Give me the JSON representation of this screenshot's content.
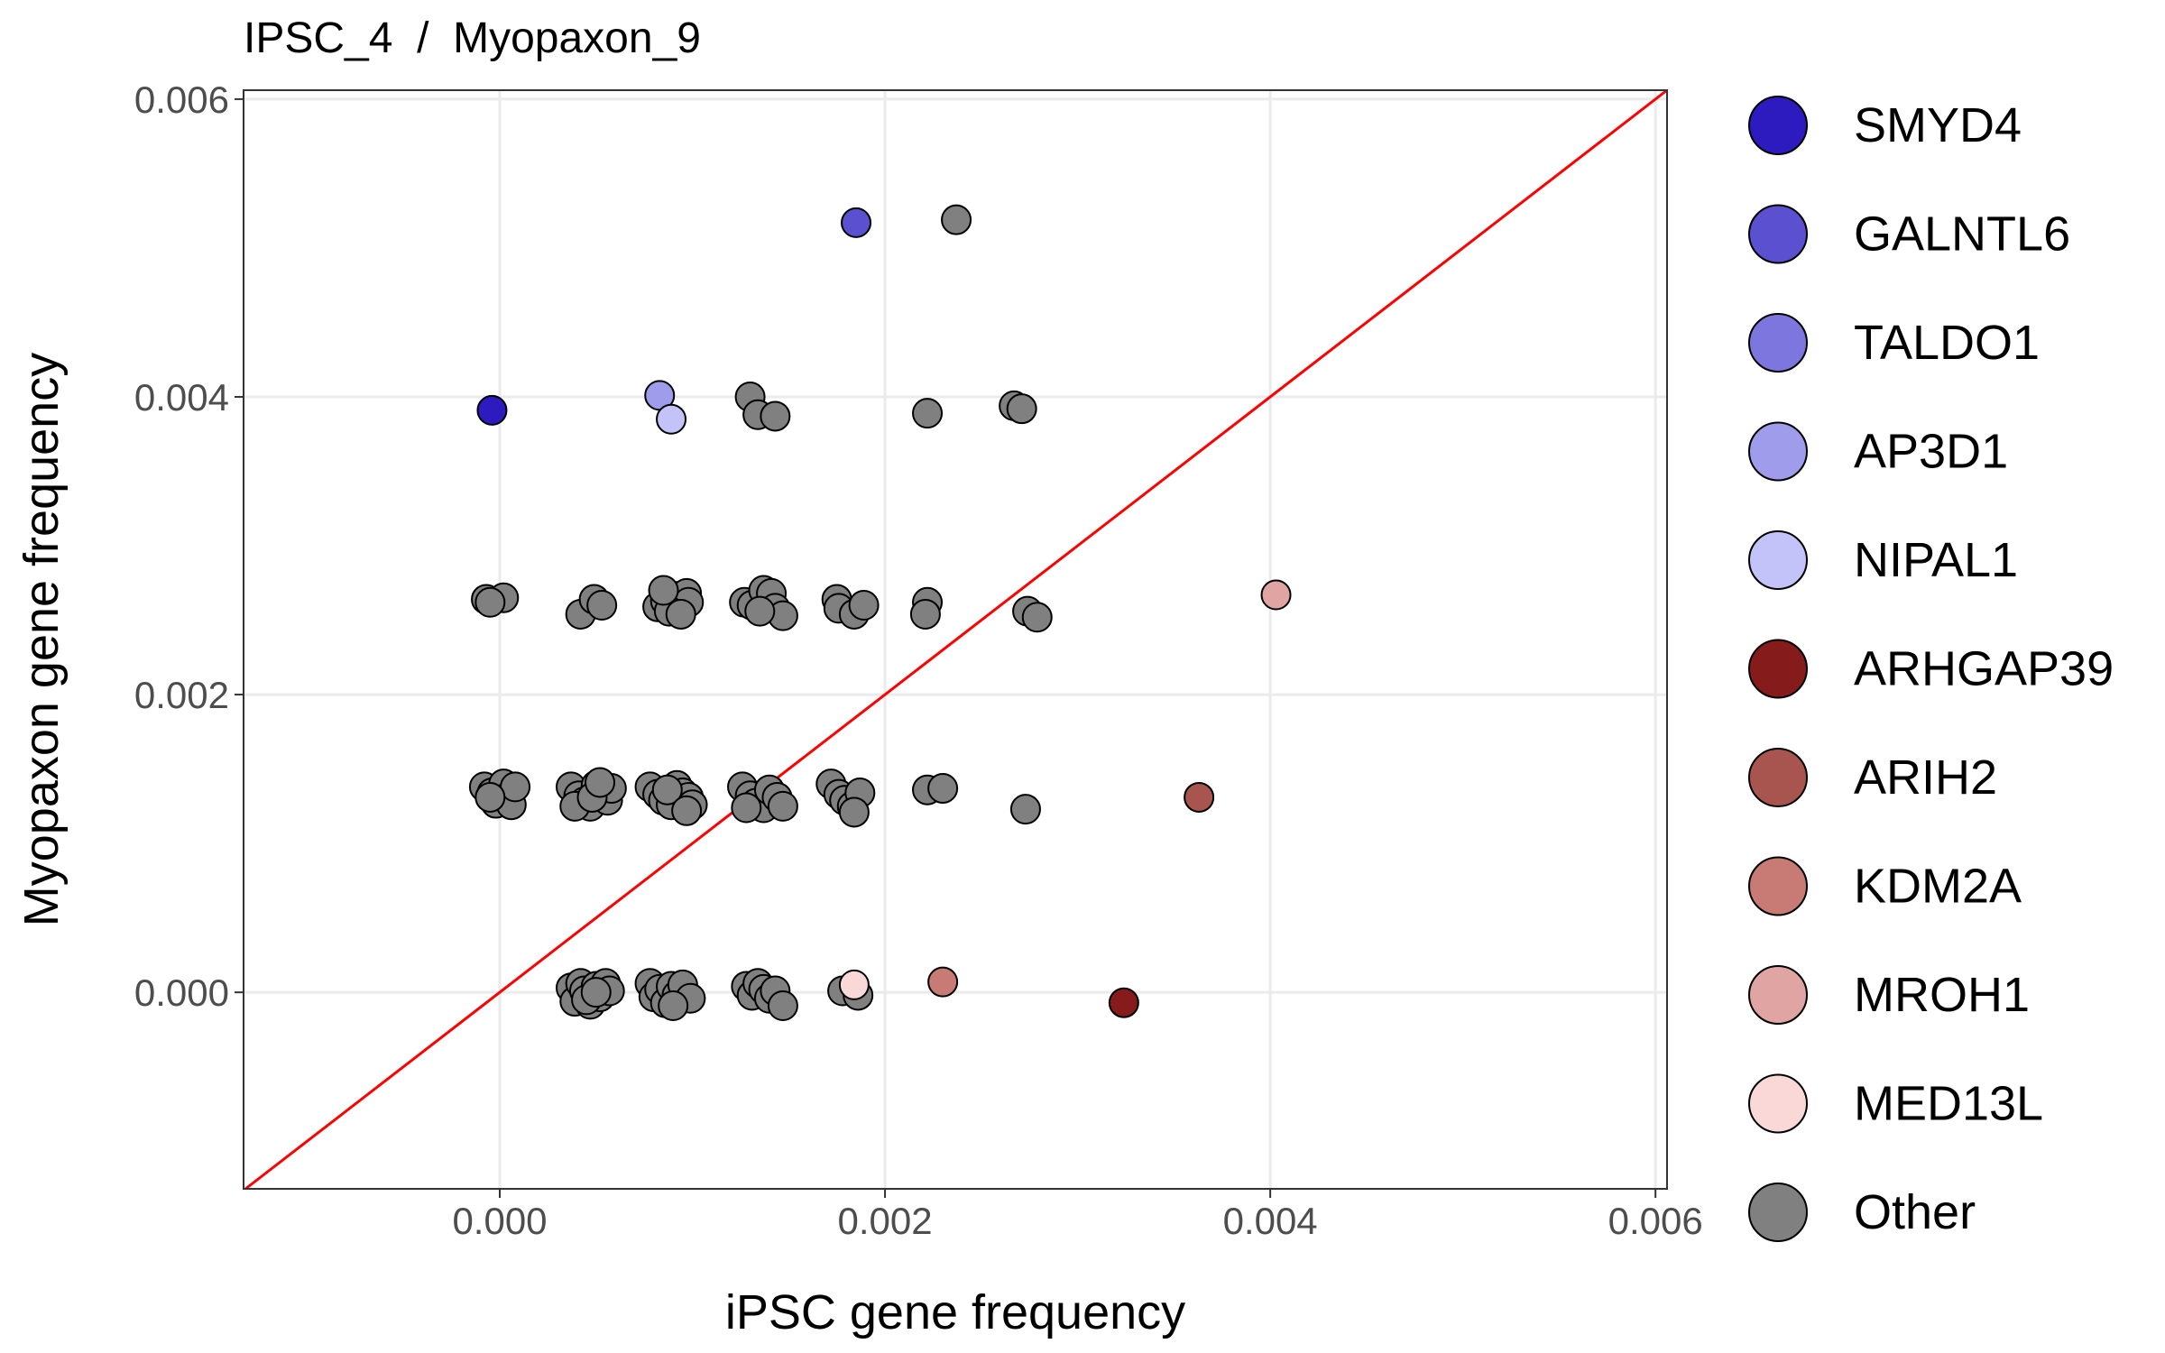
{
  "chart_data": {
    "type": "scatter",
    "title": "IPSC_4  /  Myopaxon_9",
    "xlabel": "iPSC gene frequency",
    "ylabel": "Myopaxon gene frequency",
    "xlim": [
      -0.00133,
      0.00606
    ],
    "ylim": [
      -0.00132,
      0.00606
    ],
    "x_ticks": [
      0.0,
      0.002,
      0.004,
      0.006
    ],
    "y_ticks": [
      0.0,
      0.002,
      0.004,
      0.006
    ],
    "x_tick_labels": [
      "0.000",
      "0.002",
      "0.004",
      "0.006"
    ],
    "y_tick_labels": [
      "0.000",
      "0.002",
      "0.004",
      "0.006"
    ],
    "grid": true,
    "legend_position": "right",
    "reference_line": {
      "type": "identity",
      "color": "#ff0000"
    },
    "series": [
      {
        "name": "SMYD4",
        "color": "#2e1bbf",
        "points": [
          [
            -4e-05,
            0.00391
          ]
        ]
      },
      {
        "name": "GALNTL6",
        "color": "#5b50d0",
        "points": [
          [
            0.00185,
            0.00517
          ]
        ]
      },
      {
        "name": "TALDO1",
        "color": "#7d76de",
        "points": []
      },
      {
        "name": "AP3D1",
        "color": "#9f9cec",
        "points": [
          [
            0.00083,
            0.00401
          ]
        ]
      },
      {
        "name": "NIPAL1",
        "color": "#c4c3f9",
        "points": [
          [
            0.00089,
            0.00385
          ]
        ]
      },
      {
        "name": "ARHGAP39",
        "color": "#861b1b",
        "points": [
          [
            0.00324,
            -7e-05
          ]
        ]
      },
      {
        "name": "ARIH2",
        "color": "#a85550",
        "points": [
          [
            0.00363,
            0.00131
          ]
        ]
      },
      {
        "name": "KDM2A",
        "color": "#c87a74",
        "points": [
          [
            0.0023,
            7e-05
          ]
        ]
      },
      {
        "name": "MROH1",
        "color": "#e0a4a2",
        "points": [
          [
            0.00403,
            0.00267
          ]
        ]
      },
      {
        "name": "MED13L",
        "color": "#fad8d8",
        "points": [
          [
            0.00184,
            5e-05
          ]
        ]
      },
      {
        "name": "Other",
        "color": "#808080",
        "points": [
          [
            0.00237,
            0.00519
          ],
          [
            0.0013,
            0.004
          ],
          [
            0.00134,
            0.00388
          ],
          [
            0.00143,
            0.00387
          ],
          [
            0.00222,
            0.00389
          ],
          [
            0.00267,
            0.00394
          ],
          [
            0.00271,
            0.00392
          ],
          [
            -7e-05,
            0.00264
          ],
          [
            2e-05,
            0.00265
          ],
          [
            -5e-05,
            0.00262
          ],
          [
            0.00042,
            0.00254
          ],
          [
            0.00049,
            0.00264
          ],
          [
            0.00053,
            0.0026
          ],
          [
            0.00082,
            0.00259
          ],
          [
            0.00086,
            0.00263
          ],
          [
            0.00092,
            0.00266
          ],
          [
            0.00097,
            0.00268
          ],
          [
            0.00098,
            0.00262
          ],
          [
            0.00088,
            0.00256
          ],
          [
            0.00094,
            0.00254
          ],
          [
            0.00085,
            0.0027
          ],
          [
            0.00127,
            0.00262
          ],
          [
            0.00131,
            0.0026
          ],
          [
            0.00137,
            0.0027
          ],
          [
            0.00141,
            0.00268
          ],
          [
            0.00143,
            0.00258
          ],
          [
            0.00147,
            0.00253
          ],
          [
            0.00135,
            0.00256
          ],
          [
            0.00175,
            0.00264
          ],
          [
            0.00176,
            0.00258
          ],
          [
            0.00184,
            0.00254
          ],
          [
            0.00189,
            0.0026
          ],
          [
            0.00222,
            0.00262
          ],
          [
            0.00221,
            0.00254
          ],
          [
            0.00274,
            0.00256
          ],
          [
            0.00279,
            0.00252
          ],
          [
            -8e-05,
            0.00138
          ],
          [
            -4e-05,
            0.00134
          ],
          [
            -2e-05,
            0.00127
          ],
          [
            2e-05,
            0.0014
          ],
          [
            4e-05,
            0.00131
          ],
          [
            6e-05,
            0.00126
          ],
          [
            8e-05,
            0.00138
          ],
          [
            -5e-05,
            0.00131
          ],
          [
            0.00037,
            0.00138
          ],
          [
            0.00041,
            0.00132
          ],
          [
            0.00044,
            0.00128
          ],
          [
            0.00047,
            0.00125
          ],
          [
            0.0005,
            0.00139
          ],
          [
            0.00053,
            0.00133
          ],
          [
            0.00056,
            0.00129
          ],
          [
            0.00058,
            0.00137
          ],
          [
            0.00039,
            0.00125
          ],
          [
            0.00048,
            0.00131
          ],
          [
            0.00052,
            0.00141
          ],
          [
            0.00078,
            0.00138
          ],
          [
            0.00082,
            0.00133
          ],
          [
            0.00085,
            0.00129
          ],
          [
            0.00089,
            0.00126
          ],
          [
            0.00092,
            0.00139
          ],
          [
            0.00095,
            0.00134
          ],
          [
            0.00098,
            0.00131
          ],
          [
            0.001,
            0.00126
          ],
          [
            0.00087,
            0.00136
          ],
          [
            0.00097,
            0.00122
          ],
          [
            0.00126,
            0.00138
          ],
          [
            0.0013,
            0.00132
          ],
          [
            0.00133,
            0.00127
          ],
          [
            0.00137,
            0.00124
          ],
          [
            0.0014,
            0.00136
          ],
          [
            0.00144,
            0.00131
          ],
          [
            0.00147,
            0.00125
          ],
          [
            0.00128,
            0.00124
          ],
          [
            0.00172,
            0.0014
          ],
          [
            0.00176,
            0.00133
          ],
          [
            0.00179,
            0.00129
          ],
          [
            0.00183,
            0.00125
          ],
          [
            0.00187,
            0.00134
          ],
          [
            0.00184,
            0.00121
          ],
          [
            0.00222,
            0.00136
          ],
          [
            0.0023,
            0.00137
          ],
          [
            0.00273,
            0.00123
          ],
          [
            0.00037,
            3e-05
          ],
          [
            0.00039,
            -6e-05
          ],
          [
            0.00042,
            6e-05
          ],
          [
            0.00044,
            1e-05
          ],
          [
            0.00047,
            -8e-05
          ],
          [
            0.0005,
            4e-05
          ],
          [
            0.00052,
            -3e-05
          ],
          [
            0.00055,
            6e-05
          ],
          [
            0.00057,
            1e-05
          ],
          [
            0.00045,
            -5e-05
          ],
          [
            0.0005,
            0.0
          ],
          [
            0.00078,
            6e-05
          ],
          [
            0.0008,
            -3e-05
          ],
          [
            0.00083,
            2e-05
          ],
          [
            0.00086,
            -7e-05
          ],
          [
            0.00089,
            4e-05
          ],
          [
            0.00092,
            -2e-05
          ],
          [
            0.00095,
            5e-05
          ],
          [
            0.00099,
            -4e-05
          ],
          [
            0.0009,
            -9e-05
          ],
          [
            0.00128,
            4e-05
          ],
          [
            0.00131,
            -2e-05
          ],
          [
            0.00134,
            6e-05
          ],
          [
            0.00137,
            2e-05
          ],
          [
            0.0014,
            -4e-05
          ],
          [
            0.00143,
            1e-05
          ],
          [
            0.00147,
            -9e-05
          ],
          [
            0.00178,
            1e-05
          ],
          [
            0.00186,
            -2e-05
          ]
        ]
      }
    ]
  }
}
